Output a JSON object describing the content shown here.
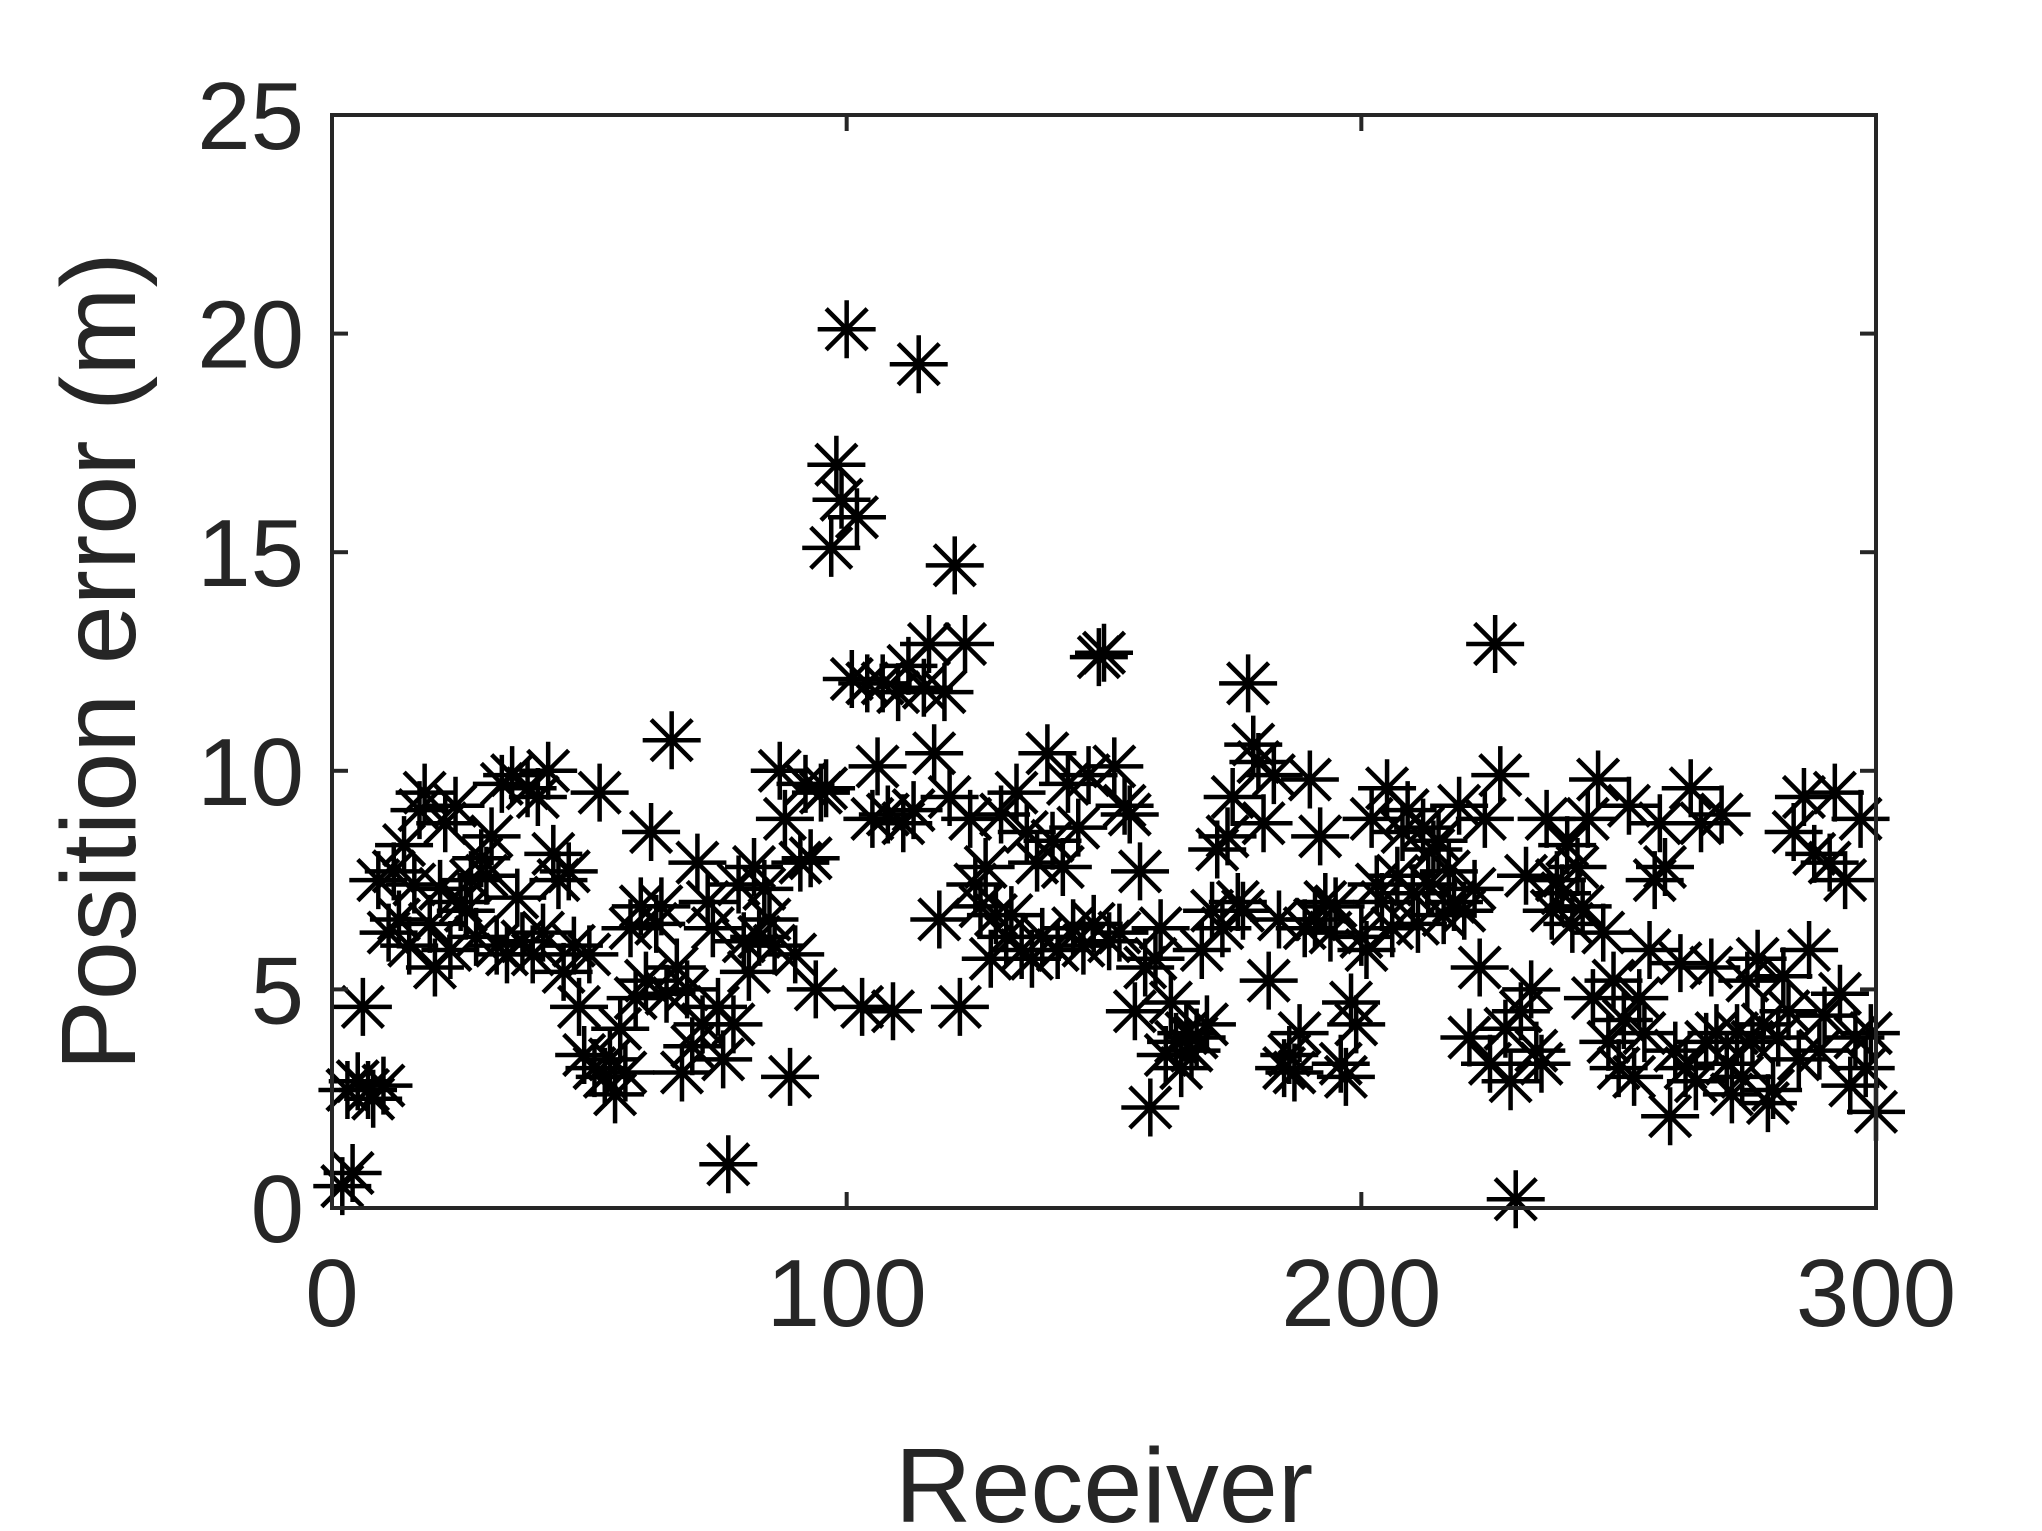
{
  "chart_data": {
    "type": "scatter",
    "title": "",
    "xlabel": "Receiver",
    "ylabel": "Position error (m)",
    "xlim": [
      0,
      300
    ],
    "ylim": [
      0,
      25
    ],
    "xticks": [
      0,
      100,
      200,
      300
    ],
    "yticks": [
      0,
      5,
      10,
      15,
      20,
      25
    ],
    "grid": false,
    "legend": "none",
    "marker": "asterisk",
    "marker_color": "#000000",
    "axis_color": "#262626",
    "series": [
      {
        "points": [
          [
            2,
            0.5
          ],
          [
            3,
            2.7
          ],
          [
            4,
            0.8
          ],
          [
            5,
            2.9
          ],
          [
            6,
            4.6
          ],
          [
            7,
            2.7
          ],
          [
            8,
            2.5
          ],
          [
            9,
            7.5
          ],
          [
            10,
            2.8
          ],
          [
            11,
            6.3
          ],
          [
            12,
            7.7
          ],
          [
            13,
            6.6
          ],
          [
            14,
            8.3
          ],
          [
            15,
            6.0
          ],
          [
            16,
            7.4
          ],
          [
            17,
            9.1
          ],
          [
            18,
            9.5
          ],
          [
            19,
            6.5
          ],
          [
            20,
            5.5
          ],
          [
            21,
            7.3
          ],
          [
            22,
            8.8
          ],
          [
            23,
            5.9
          ],
          [
            24,
            9.2
          ],
          [
            25,
            7.0
          ],
          [
            26,
            6.8
          ],
          [
            27,
            7.5
          ],
          [
            28,
            6.2
          ],
          [
            29,
            8.0
          ],
          [
            30,
            7.6
          ],
          [
            31,
            8.5
          ],
          [
            32,
            6.0
          ],
          [
            33,
            9.7
          ],
          [
            34,
            5.8
          ],
          [
            35,
            9.9
          ],
          [
            36,
            7.1
          ],
          [
            37,
            6.1
          ],
          [
            38,
            9.6
          ],
          [
            39,
            5.8
          ],
          [
            40,
            9.4
          ],
          [
            41,
            6.3
          ],
          [
            42,
            10.0
          ],
          [
            43,
            8.1
          ],
          [
            44,
            7.5
          ],
          [
            45,
            5.4
          ],
          [
            46,
            7.7
          ],
          [
            47,
            6.0
          ],
          [
            48,
            4.6
          ],
          [
            49,
            3.5
          ],
          [
            50,
            5.8
          ],
          [
            51,
            3.2
          ],
          [
            52,
            9.5
          ],
          [
            53,
            3.0
          ],
          [
            54,
            3.4
          ],
          [
            55,
            2.6
          ],
          [
            56,
            4.1
          ],
          [
            57,
            3.1
          ],
          [
            58,
            6.4
          ],
          [
            59,
            4.8
          ],
          [
            60,
            6.9
          ],
          [
            61,
            5.2
          ],
          [
            62,
            8.6
          ],
          [
            63,
            6.5
          ],
          [
            64,
            6.9
          ],
          [
            65,
            4.9
          ],
          [
            66,
            10.7
          ],
          [
            67,
            5.5
          ],
          [
            68,
            3.1
          ],
          [
            69,
            5.0
          ],
          [
            70,
            3.7
          ],
          [
            71,
            7.9
          ],
          [
            72,
            4.2
          ],
          [
            73,
            7.0
          ],
          [
            74,
            6.4
          ],
          [
            75,
            4.6
          ],
          [
            76,
            3.4
          ],
          [
            77,
            1.0
          ],
          [
            78,
            4.2
          ],
          [
            79,
            7.4
          ],
          [
            80,
            6.1
          ],
          [
            81,
            5.4
          ],
          [
            82,
            7.8
          ],
          [
            83,
            6.2
          ],
          [
            84,
            7.3
          ],
          [
            85,
            6.6
          ],
          [
            86,
            6.0
          ],
          [
            87,
            10.0
          ],
          [
            88,
            8.9
          ],
          [
            89,
            3.0
          ],
          [
            90,
            5.8
          ],
          [
            91,
            7.9
          ],
          [
            92,
            9.7
          ],
          [
            93,
            8.0
          ],
          [
            94,
            5.0
          ],
          [
            95,
            9.5
          ],
          [
            96,
            9.6
          ],
          [
            97,
            15.1
          ],
          [
            98,
            17.0
          ],
          [
            99,
            16.2
          ],
          [
            100,
            20.1
          ],
          [
            101,
            12.1
          ],
          [
            102,
            15.8
          ],
          [
            103,
            4.6
          ],
          [
            104,
            12.0
          ],
          [
            105,
            8.9
          ],
          [
            106,
            10.1
          ],
          [
            107,
            12.0
          ],
          [
            108,
            9.0
          ],
          [
            109,
            4.5
          ],
          [
            110,
            11.8
          ],
          [
            111,
            8.8
          ],
          [
            112,
            12.4
          ],
          [
            113,
            9.1
          ],
          [
            114,
            19.3
          ],
          [
            115,
            11.9
          ],
          [
            116,
            12.9
          ],
          [
            117,
            10.4
          ],
          [
            118,
            6.6
          ],
          [
            119,
            11.8
          ],
          [
            120,
            9.4
          ],
          [
            121,
            14.7
          ],
          [
            122,
            4.6
          ],
          [
            123,
            12.9
          ],
          [
            124,
            8.9
          ],
          [
            125,
            7.4
          ],
          [
            126,
            6.9
          ],
          [
            127,
            7.8
          ],
          [
            128,
            5.7
          ],
          [
            129,
            6.7
          ],
          [
            130,
            9.0
          ],
          [
            131,
            6.2
          ],
          [
            132,
            6.7
          ],
          [
            133,
            9.5
          ],
          [
            134,
            5.9
          ],
          [
            135,
            8.6
          ],
          [
            136,
            5.7
          ],
          [
            137,
            7.9
          ],
          [
            138,
            6.2
          ],
          [
            139,
            10.4
          ],
          [
            140,
            8.4
          ],
          [
            141,
            5.9
          ],
          [
            142,
            7.8
          ],
          [
            143,
            9.7
          ],
          [
            144,
            6.4
          ],
          [
            145,
            8.7
          ],
          [
            146,
            6.0
          ],
          [
            147,
            9.9
          ],
          [
            148,
            6.5
          ],
          [
            149,
            12.6
          ],
          [
            150,
            12.7
          ],
          [
            151,
            6.1
          ],
          [
            152,
            10.1
          ],
          [
            153,
            6.3
          ],
          [
            154,
            9.2
          ],
          [
            155,
            9.0
          ],
          [
            156,
            4.5
          ],
          [
            157,
            7.7
          ],
          [
            158,
            5.5
          ],
          [
            159,
            2.3
          ],
          [
            160,
            5.7
          ],
          [
            161,
            6.4
          ],
          [
            162,
            3.5
          ],
          [
            163,
            4.7
          ],
          [
            164,
            3.8
          ],
          [
            165,
            3.2
          ],
          [
            166,
            4.0
          ],
          [
            167,
            3.6
          ],
          [
            168,
            3.9
          ],
          [
            169,
            5.9
          ],
          [
            170,
            4.2
          ],
          [
            171,
            6.8
          ],
          [
            172,
            8.2
          ],
          [
            173,
            6.4
          ],
          [
            174,
            8.5
          ],
          [
            175,
            9.4
          ],
          [
            176,
            7.0
          ],
          [
            177,
            6.8
          ],
          [
            178,
            12.0
          ],
          [
            179,
            10.6
          ],
          [
            180,
            10.2
          ],
          [
            181,
            8.8
          ],
          [
            182,
            5.2
          ],
          [
            183,
            9.9
          ],
          [
            184,
            6.6
          ],
          [
            185,
            3.2
          ],
          [
            186,
            3.5
          ],
          [
            187,
            3.1
          ],
          [
            188,
            4.0
          ],
          [
            189,
            6.4
          ],
          [
            190,
            9.8
          ],
          [
            191,
            6.6
          ],
          [
            192,
            8.5
          ],
          [
            193,
            7.0
          ],
          [
            194,
            6.3
          ],
          [
            195,
            6.9
          ],
          [
            196,
            3.3
          ],
          [
            197,
            3.0
          ],
          [
            198,
            4.7
          ],
          [
            199,
            4.2
          ],
          [
            200,
            6.2
          ],
          [
            201,
            5.9
          ],
          [
            202,
            8.9
          ],
          [
            203,
            7.4
          ],
          [
            204,
            7.0
          ],
          [
            205,
            9.6
          ],
          [
            206,
            6.4
          ],
          [
            207,
            7.6
          ],
          [
            208,
            8.6
          ],
          [
            209,
            9.1
          ],
          [
            210,
            7.2
          ],
          [
            211,
            6.5
          ],
          [
            212,
            8.7
          ],
          [
            213,
            7.4
          ],
          [
            214,
            8.2
          ],
          [
            215,
            8.4
          ],
          [
            216,
            6.7
          ],
          [
            217,
            7.7
          ],
          [
            218,
            7.0
          ],
          [
            219,
            9.2
          ],
          [
            220,
            6.8
          ],
          [
            221,
            3.9
          ],
          [
            222,
            7.3
          ],
          [
            223,
            5.5
          ],
          [
            224,
            8.9
          ],
          [
            225,
            3.3
          ],
          [
            226,
            12.9
          ],
          [
            227,
            9.9
          ],
          [
            228,
            4.1
          ],
          [
            229,
            2.9
          ],
          [
            230,
            0.2
          ],
          [
            231,
            4.5
          ],
          [
            232,
            7.6
          ],
          [
            233,
            5.0
          ],
          [
            234,
            3.6
          ],
          [
            235,
            3.3
          ],
          [
            236,
            8.9
          ],
          [
            237,
            6.8
          ],
          [
            238,
            7.5
          ],
          [
            239,
            7.2
          ],
          [
            240,
            8.3
          ],
          [
            241,
            6.5
          ],
          [
            242,
            7.8
          ],
          [
            243,
            6.9
          ],
          [
            244,
            8.9
          ],
          [
            245,
            4.8
          ],
          [
            246,
            9.8
          ],
          [
            247,
            6.3
          ],
          [
            248,
            3.8
          ],
          [
            249,
            5.2
          ],
          [
            250,
            3.2
          ],
          [
            251,
            4.3
          ],
          [
            252,
            9.2
          ],
          [
            253,
            3.0
          ],
          [
            254,
            4.8
          ],
          [
            255,
            4.0
          ],
          [
            256,
            5.9
          ],
          [
            257,
            7.5
          ],
          [
            258,
            8.8
          ],
          [
            259,
            7.8
          ],
          [
            260,
            2.1
          ],
          [
            261,
            3.6
          ],
          [
            262,
            5.6
          ],
          [
            263,
            3.2
          ],
          [
            264,
            9.6
          ],
          [
            265,
            2.9
          ],
          [
            266,
            8.8
          ],
          [
            267,
            3.8
          ],
          [
            268,
            5.5
          ],
          [
            269,
            4.0
          ],
          [
            270,
            9.0
          ],
          [
            271,
            3.3
          ],
          [
            272,
            2.6
          ],
          [
            273,
            4.0
          ],
          [
            274,
            3.0
          ],
          [
            275,
            5.2
          ],
          [
            276,
            3.8
          ],
          [
            277,
            5.7
          ],
          [
            278,
            4.2
          ],
          [
            279,
            2.4
          ],
          [
            280,
            2.7
          ],
          [
            281,
            3.9
          ],
          [
            282,
            5.3
          ],
          [
            283,
            4.5
          ],
          [
            284,
            8.6
          ],
          [
            285,
            3.4
          ],
          [
            286,
            9.4
          ],
          [
            287,
            5.9
          ],
          [
            288,
            8.1
          ],
          [
            289,
            3.6
          ],
          [
            290,
            4.4
          ],
          [
            291,
            7.9
          ],
          [
            292,
            9.5
          ],
          [
            293,
            4.9
          ],
          [
            294,
            7.5
          ],
          [
            295,
            2.8
          ],
          [
            296,
            3.9
          ],
          [
            297,
            8.9
          ],
          [
            298,
            3.2
          ],
          [
            299,
            4.0
          ],
          [
            300,
            2.2
          ]
        ]
      }
    ]
  }
}
